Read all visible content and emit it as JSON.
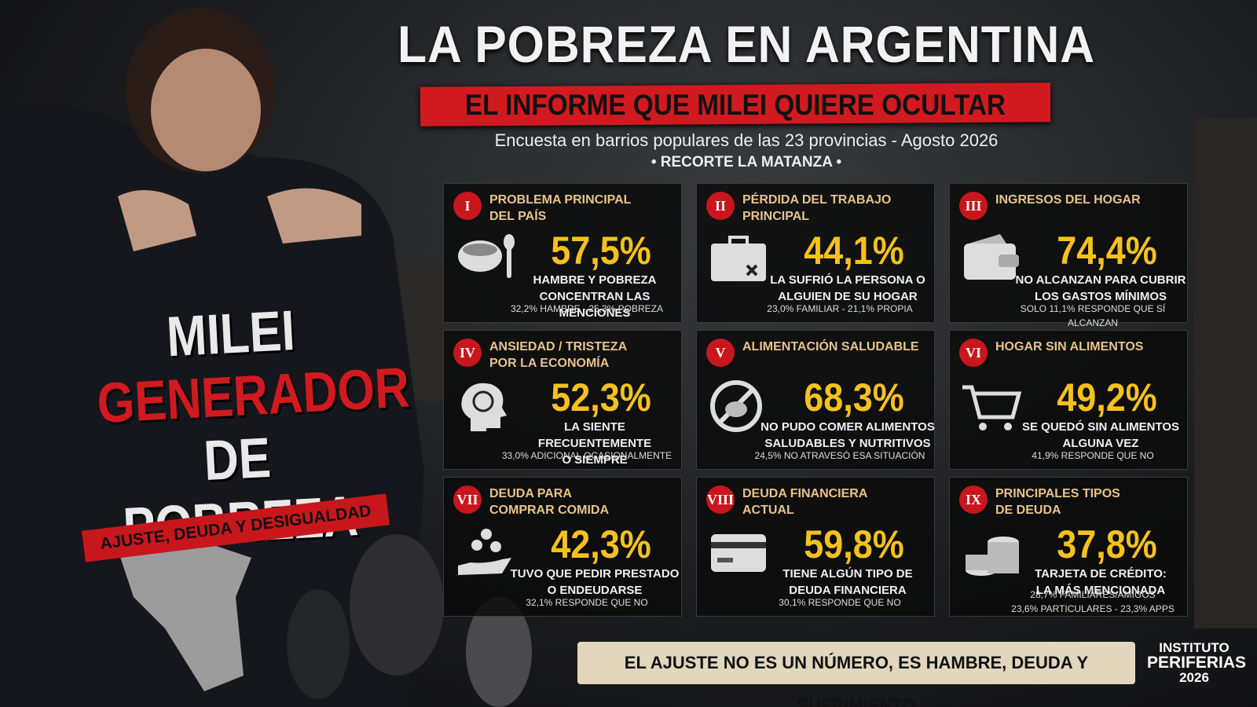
{
  "header": {
    "title": "LA POBREZA EN ARGENTINA",
    "banner": "EL INFORME QUE MILEI QUIERE OCULTAR",
    "subtitle": "Encuesta en barrios populares de las 23 provincias - Agosto 2026",
    "subtitle2": "• RECORTE LA MATANZA •"
  },
  "left": {
    "lines": [
      "MILEI",
      "GENERADOR",
      "DE POBREZA"
    ],
    "tagline": "AJUSTE, DEUDA Y DESIGUALDAD"
  },
  "panels": [
    {
      "numeral": "I",
      "title": [
        "PROBLEMA PRINCIPAL",
        "DEL PAÍS"
      ],
      "value": "57,5%",
      "text": [
        "HAMBRE Y POBREZA",
        "CONCENTRAN LAS MENCIONES"
      ],
      "note": [
        "32,2% HAMBRE - 25,3% POBREZA"
      ]
    },
    {
      "numeral": "II",
      "title": [
        "PÉRDIDA DEL TRABAJO",
        "PRINCIPAL"
      ],
      "value": "44,1%",
      "text": [
        "LA SUFRIÓ LA PERSONA O",
        "ALGUIEN DE SU HOGAR"
      ],
      "note": [
        "23,0% FAMILIAR - 21,1% PROPIA"
      ]
    },
    {
      "numeral": "III",
      "title": [
        "INGRESOS DEL HOGAR"
      ],
      "value": "74,4%",
      "text": [
        "NO ALCANZAN PARA CUBRIR",
        "LOS GASTOS MÍNIMOS"
      ],
      "note": [
        "SOLO 11,1% RESPONDE QUE SÍ ALCANZAN"
      ]
    },
    {
      "numeral": "IV",
      "title": [
        "ANSIEDAD / TRISTEZA",
        "POR LA ECONOMÍA"
      ],
      "value": "52,3%",
      "text": [
        "LA SIENTE FRECUENTEMENTE",
        "O SIEMPRE"
      ],
      "note": [
        "33,0% ADICIONAL OCASIONALMENTE"
      ]
    },
    {
      "numeral": "V",
      "title": [
        "ALIMENTACIÓN SALUDABLE"
      ],
      "value": "68,3%",
      "text": [
        "NO PUDO COMER ALIMENTOS",
        "SALUDABLES Y NUTRITIVOS"
      ],
      "note": [
        "24,5% NO ATRAVESÓ ESA SITUACIÓN"
      ]
    },
    {
      "numeral": "VI",
      "title": [
        "HOGAR SIN ALIMENTOS"
      ],
      "value": "49,2%",
      "text": [
        "SE QUEDÓ SIN ALIMENTOS",
        "ALGUNA VEZ"
      ],
      "note": [
        "41,9% RESPONDE QUE NO"
      ]
    },
    {
      "numeral": "VII",
      "title": [
        "DEUDA PARA",
        "COMPRAR COMIDA"
      ],
      "value": "42,3%",
      "text": [
        "TUVO QUE PEDIR PRESTADO",
        "O ENDEUDARSE"
      ],
      "note": [
        "32,1% RESPONDE QUE NO"
      ]
    },
    {
      "numeral": "VIII",
      "title": [
        "DEUDA FINANCIERA",
        "ACTUAL"
      ],
      "value": "59,8%",
      "text": [
        "TIENE ALGÚN TIPO DE",
        "DEUDA FINANCIERA"
      ],
      "note": [
        "30,1% RESPONDE QUE NO"
      ]
    },
    {
      "numeral": "IX",
      "title": [
        "PRINCIPALES TIPOS",
        "DE DEUDA"
      ],
      "value": "37,8%",
      "text": [
        "TARJETA DE CRÉDITO:",
        "LA MÁS MENCIONADA"
      ],
      "note": [
        "28,7% FAMILIARES/AMIGOS",
        "23,6% PARTICULARES - 23,3% APPS"
      ]
    }
  ],
  "footer": {
    "text": "EL AJUSTE NO ES UN NÚMERO, ES HAMBRE, DEUDA Y SUFRIMIENTO",
    "logo": [
      "INSTITUTO",
      "PERIFERIAS",
      "2026"
    ]
  }
}
